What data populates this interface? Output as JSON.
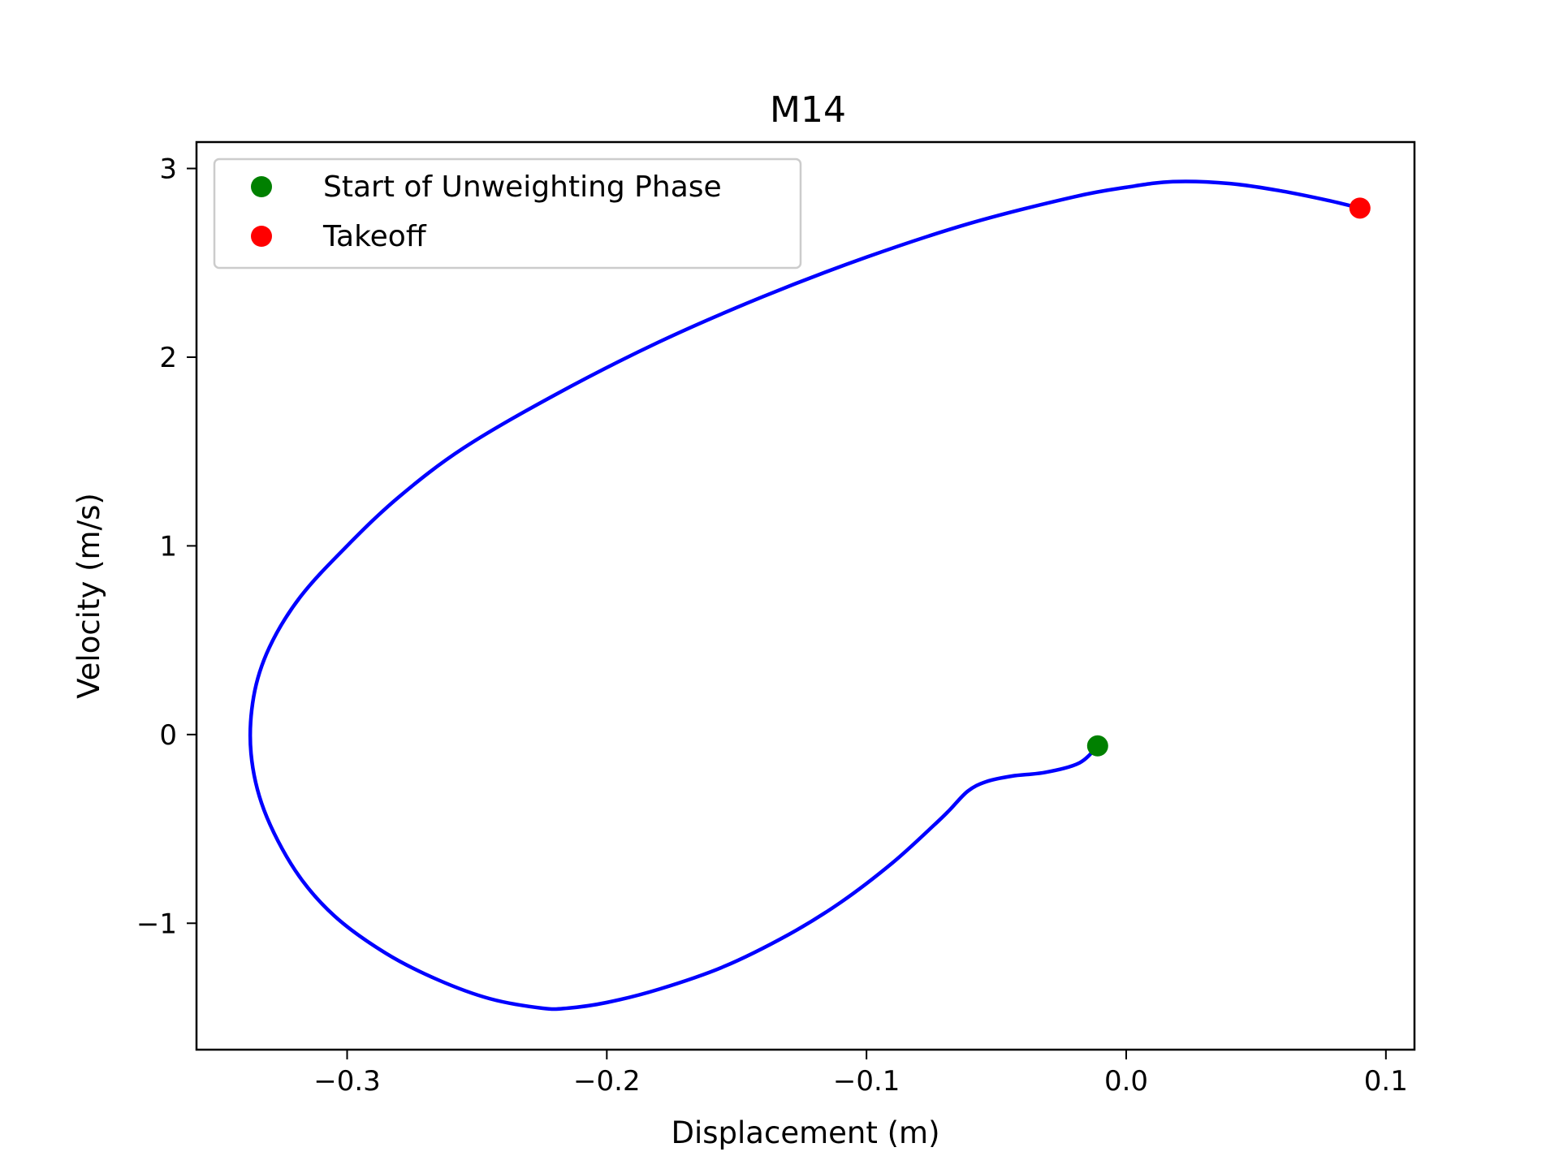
{
  "chart_data": {
    "type": "line",
    "title": "M14",
    "xlabel": "Displacement (m)",
    "ylabel": "Velocity (m/s)",
    "xlim": [
      -0.358,
      0.111
    ],
    "ylim": [
      -1.67,
      3.14
    ],
    "xticks": [
      {
        "value": -0.3,
        "label": "−0.3"
      },
      {
        "value": -0.2,
        "label": "−0.2"
      },
      {
        "value": -0.1,
        "label": "−0.1"
      },
      {
        "value": 0.0,
        "label": "0.0"
      },
      {
        "value": 0.1,
        "label": "0.1"
      }
    ],
    "yticks": [
      {
        "value": -1,
        "label": "−1"
      },
      {
        "value": 0,
        "label": "0"
      },
      {
        "value": 1,
        "label": "1"
      },
      {
        "value": 2,
        "label": "2"
      },
      {
        "value": 3,
        "label": "3"
      }
    ],
    "grid": false,
    "legend_position": "top-left",
    "series": [
      {
        "color": "#0000ff",
        "x": [
          -0.011,
          -0.018,
          -0.031,
          -0.044,
          -0.054,
          -0.061,
          -0.068,
          -0.074,
          -0.09,
          -0.11,
          -0.13,
          -0.155,
          -0.18,
          -0.2,
          -0.215,
          -0.225,
          -0.245,
          -0.265,
          -0.285,
          -0.305,
          -0.32,
          -0.332,
          -0.337,
          -0.336,
          -0.33,
          -0.318,
          -0.3,
          -0.28,
          -0.255,
          -0.22,
          -0.18,
          -0.14,
          -0.1,
          -0.06,
          -0.02,
          0.0,
          0.018,
          0.04,
          0.06,
          0.078,
          0.09
        ],
        "y": [
          -0.06,
          -0.15,
          -0.2,
          -0.22,
          -0.25,
          -0.3,
          -0.4,
          -0.48,
          -0.68,
          -0.89,
          -1.06,
          -1.23,
          -1.35,
          -1.42,
          -1.45,
          -1.45,
          -1.4,
          -1.3,
          -1.16,
          -0.96,
          -0.72,
          -0.4,
          -0.1,
          0.2,
          0.46,
          0.73,
          1.0,
          1.26,
          1.52,
          1.8,
          2.08,
          2.32,
          2.53,
          2.71,
          2.85,
          2.9,
          2.93,
          2.92,
          2.88,
          2.83,
          2.79
        ]
      }
    ],
    "markers": [
      {
        "name": "Start of Unweighting Phase",
        "x": -0.011,
        "y": -0.06,
        "color": "#008000"
      },
      {
        "name": "Takeoff",
        "x": 0.09,
        "y": 2.79,
        "color": "#ff0000"
      }
    ]
  }
}
